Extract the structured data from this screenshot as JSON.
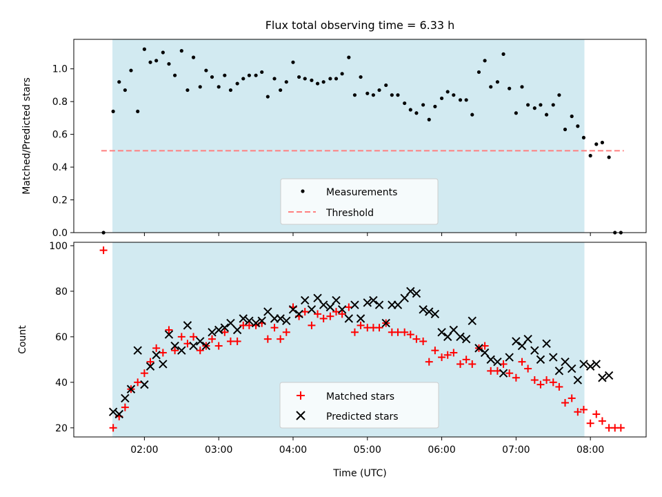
{
  "chart_data": [
    {
      "type": "scatter",
      "title": "Flux total observing time = 6.33 h",
      "xlabel": "",
      "ylabel": "Matched/Predicted stars",
      "ylim": [
        0,
        1.18
      ],
      "yticks": [
        "0.0",
        "0.2",
        "0.4",
        "0.6",
        "0.8",
        "1.0"
      ],
      "ytick_values": [
        0,
        0.2,
        0.4,
        0.6,
        0.8,
        1.0
      ],
      "xlim_hours": [
        1.05,
        8.75
      ],
      "observing_window_hours": [
        1.57,
        7.92
      ],
      "grid": false,
      "legend_position": "lower center",
      "threshold": {
        "name": "Threshold",
        "value": 0.5,
        "x_range_hours": [
          1.42,
          8.45
        ],
        "color": "#ff7f7f",
        "style": "dashed"
      },
      "series": [
        {
          "name": "Measurements",
          "color": "#000000",
          "marker": "dot",
          "x_hours": [
            1.45,
            1.58,
            1.66,
            1.74,
            1.82,
            1.91,
            2.0,
            2.08,
            2.16,
            2.25,
            2.33,
            2.41,
            2.5,
            2.58,
            2.66,
            2.75,
            2.83,
            2.91,
            3.0,
            3.08,
            3.16,
            3.25,
            3.33,
            3.41,
            3.5,
            3.58,
            3.66,
            3.75,
            3.83,
            3.91,
            4.0,
            4.08,
            4.16,
            4.25,
            4.33,
            4.41,
            4.5,
            4.58,
            4.66,
            4.75,
            4.83,
            4.91,
            5.0,
            5.08,
            5.16,
            5.25,
            5.33,
            5.41,
            5.5,
            5.58,
            5.66,
            5.75,
            5.83,
            5.91,
            6.0,
            6.08,
            6.16,
            6.25,
            6.33,
            6.41,
            6.5,
            6.58,
            6.66,
            6.75,
            6.83,
            6.91,
            7.0,
            7.08,
            7.16,
            7.25,
            7.33,
            7.41,
            7.5,
            7.58,
            7.66,
            7.75,
            7.83,
            7.91,
            8.0,
            8.08,
            8.16,
            8.25,
            8.33,
            8.41
          ],
          "values": [
            0.0,
            0.74,
            0.92,
            0.87,
            0.99,
            0.74,
            1.12,
            1.04,
            1.05,
            1.1,
            1.03,
            0.96,
            1.11,
            0.87,
            1.07,
            0.89,
            0.99,
            0.95,
            0.89,
            0.96,
            0.87,
            0.91,
            0.94,
            0.96,
            0.96,
            0.98,
            0.83,
            0.94,
            0.87,
            0.92,
            1.04,
            0.95,
            0.94,
            0.93,
            0.91,
            0.92,
            0.94,
            0.94,
            0.97,
            1.07,
            0.84,
            0.95,
            0.85,
            0.84,
            0.87,
            0.9,
            0.84,
            0.84,
            0.79,
            0.75,
            0.73,
            0.78,
            0.69,
            0.77,
            0.82,
            0.86,
            0.84,
            0.81,
            0.81,
            0.72,
            0.98,
            1.05,
            0.89,
            0.92,
            1.09,
            0.88,
            0.73,
            0.89,
            0.78,
            0.76,
            0.78,
            0.72,
            0.78,
            0.84,
            0.63,
            0.71,
            0.65,
            0.58,
            0.47,
            0.54,
            0.55,
            0.46,
            0.0,
            0.0
          ]
        }
      ]
    },
    {
      "type": "scatter",
      "title": "",
      "xlabel": "Time (UTC)",
      "ylabel": "Count",
      "ylim": [
        16,
        101.5
      ],
      "yticks": [
        "20",
        "40",
        "60",
        "80",
        "100"
      ],
      "ytick_values": [
        20,
        40,
        60,
        80,
        100
      ],
      "xlim_hours": [
        1.05,
        8.75
      ],
      "xticks": [
        "02:00",
        "03:00",
        "04:00",
        "05:00",
        "06:00",
        "07:00",
        "08:00"
      ],
      "xtick_values_hours": [
        2,
        3,
        4,
        5,
        6,
        7,
        8
      ],
      "observing_window_hours": [
        1.57,
        7.92
      ],
      "grid": false,
      "legend_position": "lower center",
      "series": [
        {
          "name": "Matched stars",
          "color": "#ff0000",
          "marker": "plus",
          "x_hours": [
            1.45,
            1.58,
            1.66,
            1.74,
            1.82,
            1.91,
            2.0,
            2.08,
            2.16,
            2.25,
            2.33,
            2.41,
            2.5,
            2.58,
            2.66,
            2.75,
            2.83,
            2.91,
            3.0,
            3.08,
            3.16,
            3.25,
            3.33,
            3.41,
            3.5,
            3.58,
            3.66,
            3.75,
            3.83,
            3.91,
            4.0,
            4.08,
            4.16,
            4.25,
            4.33,
            4.41,
            4.5,
            4.58,
            4.66,
            4.75,
            4.83,
            4.91,
            5.0,
            5.08,
            5.16,
            5.25,
            5.33,
            5.41,
            5.5,
            5.58,
            5.66,
            5.75,
            5.83,
            5.91,
            6.0,
            6.08,
            6.16,
            6.25,
            6.33,
            6.41,
            6.5,
            6.58,
            6.66,
            6.75,
            6.83,
            6.91,
            7.0,
            7.08,
            7.16,
            7.25,
            7.33,
            7.41,
            7.5,
            7.58,
            7.66,
            7.75,
            7.83,
            7.91,
            8.0,
            8.08,
            8.16,
            8.25,
            8.33,
            8.41
          ],
          "values": [
            98,
            20,
            25,
            29,
            37,
            40,
            44,
            49,
            55,
            53,
            63,
            54,
            60,
            57,
            60,
            54,
            56,
            59,
            56,
            62,
            58,
            58,
            65,
            65,
            65,
            66,
            59,
            64,
            59,
            62,
            73,
            69,
            71,
            65,
            70,
            68,
            69,
            71,
            70,
            73,
            62,
            65,
            64,
            64,
            64,
            66,
            62,
            62,
            62,
            61,
            59,
            58,
            49,
            54,
            51,
            52,
            53,
            48,
            50,
            48,
            55,
            56,
            45,
            45,
            48,
            44,
            42,
            49,
            46,
            41,
            39,
            41,
            40,
            38,
            31,
            33,
            27,
            28,
            22,
            26,
            23,
            20,
            20,
            20
          ]
        },
        {
          "name": "Predicted stars",
          "color": "#000000",
          "marker": "x",
          "x_hours": [
            1.58,
            1.66,
            1.74,
            1.82,
            1.91,
            2.0,
            2.08,
            2.16,
            2.25,
            2.33,
            2.41,
            2.5,
            2.58,
            2.66,
            2.75,
            2.83,
            2.91,
            3.0,
            3.08,
            3.16,
            3.25,
            3.33,
            3.41,
            3.5,
            3.58,
            3.66,
            3.75,
            3.83,
            3.91,
            4.0,
            4.08,
            4.16,
            4.25,
            4.33,
            4.41,
            4.5,
            4.58,
            4.66,
            4.75,
            4.83,
            4.91,
            5.0,
            5.08,
            5.16,
            5.25,
            5.33,
            5.41,
            5.5,
            5.58,
            5.66,
            5.75,
            5.83,
            5.91,
            6.0,
            6.08,
            6.16,
            6.25,
            6.33,
            6.41,
            6.5,
            6.58,
            6.66,
            6.75,
            6.83,
            6.91,
            7.0,
            7.08,
            7.16,
            7.25,
            7.33,
            7.41,
            7.5,
            7.58,
            7.66,
            7.75,
            7.83,
            7.91,
            8.0,
            8.08,
            8.16,
            8.25
          ],
          "values": [
            27,
            26,
            33,
            37,
            54,
            39,
            47,
            52,
            48,
            61,
            56,
            54,
            65,
            56,
            58,
            56,
            62,
            63,
            64,
            66,
            63,
            68,
            67,
            66,
            67,
            71,
            68,
            68,
            67,
            72,
            70,
            76,
            72,
            77,
            74,
            73,
            76,
            72,
            68,
            74,
            68,
            75,
            76,
            74,
            66,
            74,
            74,
            77,
            80,
            79,
            72,
            71,
            70,
            62,
            60,
            63,
            60,
            59,
            67,
            55,
            53,
            50,
            49,
            44,
            51,
            58,
            56,
            59,
            54,
            50,
            57,
            51,
            45,
            49,
            46,
            41,
            48,
            47,
            48,
            42,
            43
          ]
        }
      ]
    }
  ]
}
